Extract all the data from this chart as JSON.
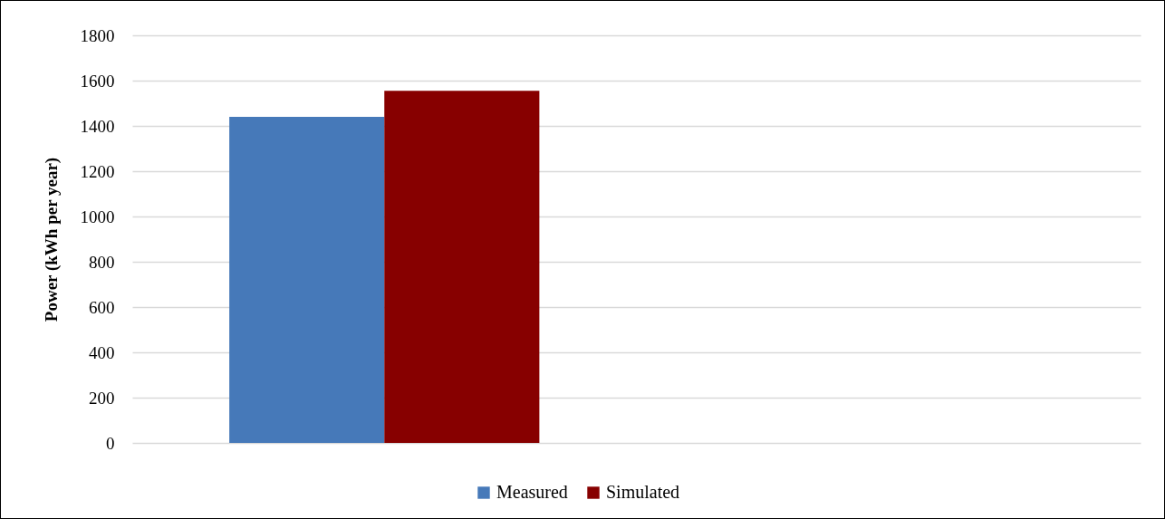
{
  "chart_data": {
    "type": "bar",
    "ylabel": "Power (kWh per year)",
    "categories": [
      null,
      null
    ],
    "series": [
      {
        "name": "Measured",
        "color": "#4679b9",
        "values": [
          1440,
          null
        ]
      },
      {
        "name": "Simulated",
        "color": "#870000",
        "values": [
          1555,
          null
        ]
      }
    ],
    "ylim": [
      0,
      1800
    ],
    "yticks": [
      0,
      200,
      400,
      600,
      800,
      1000,
      1200,
      1400,
      1600,
      1800
    ],
    "grid": "y",
    "legend": "bottom",
    "tick_labels": "y"
  }
}
